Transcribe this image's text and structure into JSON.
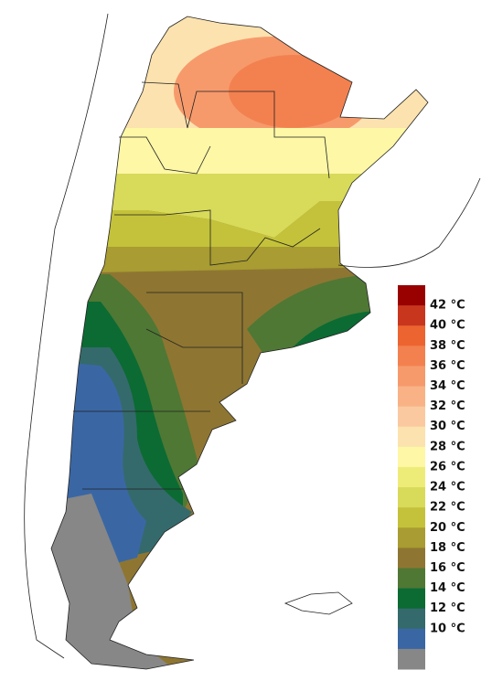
{
  "legend": {
    "colors": [
      "#990000",
      "#c9361e",
      "#ec6430",
      "#f3814f",
      "#f69a6c",
      "#f8b286",
      "#fac9a0",
      "#fce2ae",
      "#fdf7a6",
      "#eeec78",
      "#d8da5a",
      "#c4c23a",
      "#a89c32",
      "#8e7632",
      "#4f7834",
      "#0b6b33",
      "#356a6c",
      "#3a67a4",
      "#878787"
    ],
    "labels": [
      "42 °C",
      "40 °C",
      "38 °C",
      "36 °C",
      "34 °C",
      "32 °C",
      "30 °C",
      "28 °C",
      "26 °C",
      "24 °C",
      "22 °C",
      "20 °C",
      "18 °C",
      "16 °C",
      "14 °C",
      "12 °C",
      "10 °C"
    ]
  }
}
